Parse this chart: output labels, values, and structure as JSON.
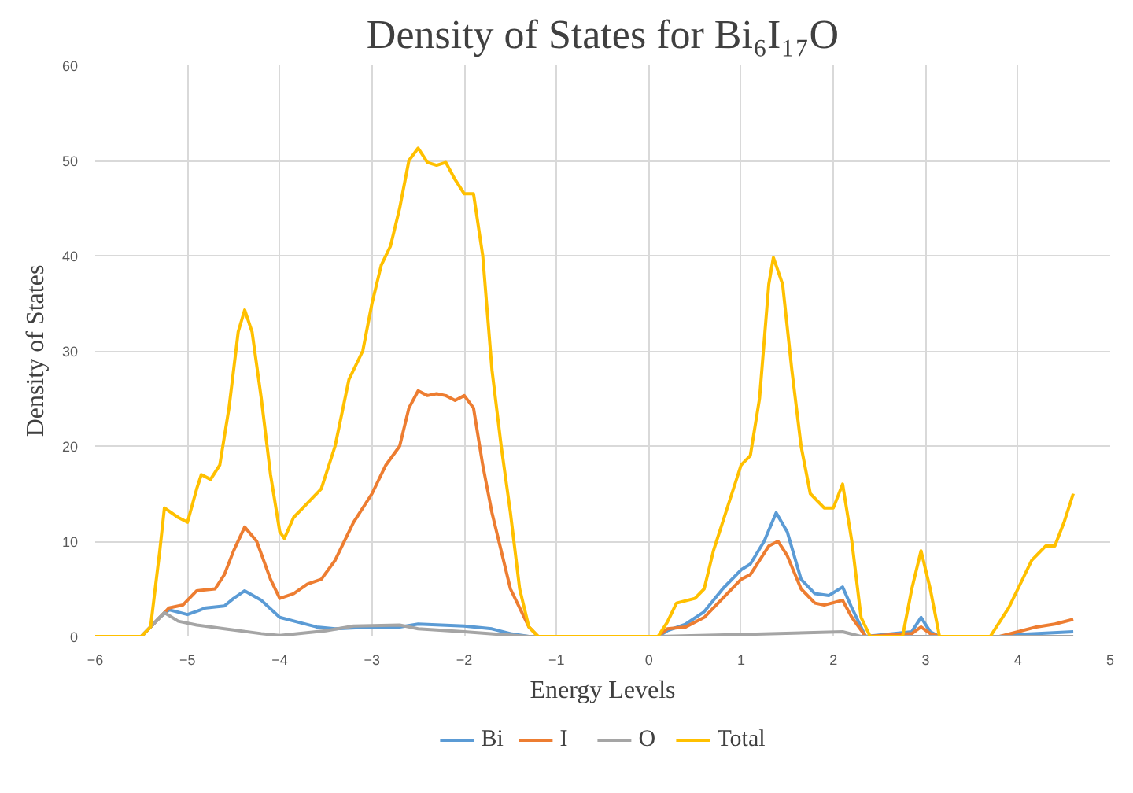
{
  "chart_data": {
    "type": "line",
    "title": "Density of States for Bi₆I₁₇O",
    "xlabel": "Energy Levels",
    "ylabel": "Density of States",
    "xlim": [
      -6,
      5
    ],
    "xticks": [
      -6,
      -5,
      -4,
      -3,
      -2,
      -1,
      0,
      1,
      2,
      3,
      4,
      5
    ],
    "ylim": [
      0,
      60
    ],
    "yticks": [
      0,
      10,
      20,
      30,
      40,
      50,
      60
    ],
    "grid": true,
    "legend": "bottom",
    "marker": "none",
    "line_style": "solid",
    "series": [
      {
        "name": "Bi",
        "color": "#5b9bd5",
        "x": [
          -6,
          -5.5,
          -5.3,
          -5.2,
          -5.0,
          -4.8,
          -4.6,
          -4.5,
          -4.38,
          -4.2,
          -4.0,
          -3.8,
          -3.6,
          -3.4,
          -3.0,
          -2.7,
          -2.5,
          -2.0,
          -1.7,
          -1.5,
          -1.3,
          0.1,
          0.2,
          0.4,
          0.6,
          0.8,
          1.0,
          1.1,
          1.25,
          1.38,
          1.5,
          1.65,
          1.8,
          1.95,
          2.1,
          2.2,
          2.35,
          2.85,
          2.95,
          3.05,
          3.15,
          3.8,
          4.0,
          4.6
        ],
        "values": [
          0,
          0,
          2,
          2.8,
          2.3,
          3,
          3.2,
          4,
          4.8,
          3.8,
          2,
          1.5,
          1,
          0.8,
          1,
          1,
          1.3,
          1.1,
          0.8,
          0.3,
          0,
          0,
          0.6,
          1.3,
          2.6,
          5,
          7,
          7.6,
          10,
          13,
          11,
          6,
          4.5,
          4.3,
          5.2,
          3,
          0,
          0.5,
          2,
          0.5,
          0,
          0,
          0.2,
          0.5
        ]
      },
      {
        "name": "I",
        "color": "#ed7d31",
        "x": [
          -6,
          -5.5,
          -5.3,
          -5.2,
          -5.05,
          -4.9,
          -4.7,
          -4.6,
          -4.5,
          -4.38,
          -4.25,
          -4.1,
          -4.0,
          -3.85,
          -3.7,
          -3.55,
          -3.4,
          -3.2,
          -3.0,
          -2.85,
          -2.7,
          -2.6,
          -2.5,
          -2.4,
          -2.3,
          -2.2,
          -2.1,
          -2.0,
          -1.9,
          -1.8,
          -1.7,
          -1.5,
          -1.3,
          -1.2,
          0.1,
          0.2,
          0.4,
          0.6,
          0.8,
          1.0,
          1.1,
          1.3,
          1.4,
          1.5,
          1.65,
          1.8,
          1.9,
          2.1,
          2.2,
          2.35,
          2.85,
          2.95,
          3.05,
          3.15,
          3.8,
          4.0,
          4.2,
          4.4,
          4.6
        ],
        "values": [
          0,
          0,
          2,
          3,
          3.3,
          4.8,
          5,
          6.5,
          9,
          11.5,
          10,
          6,
          4,
          4.5,
          5.5,
          6,
          8,
          12,
          15,
          18,
          20,
          24,
          25.8,
          25.3,
          25.5,
          25.3,
          24.8,
          25.3,
          24,
          18,
          13,
          5,
          1,
          0,
          0,
          0.8,
          1,
          2,
          4,
          6,
          6.5,
          9.5,
          10,
          8.5,
          5,
          3.5,
          3.3,
          3.8,
          2,
          0,
          0.3,
          1,
          0.3,
          0,
          0,
          0.5,
          1,
          1.3,
          1.8
        ]
      },
      {
        "name": "O",
        "color": "#a5a5a5",
        "x": [
          -6,
          -5.5,
          -5.25,
          -5.1,
          -4.9,
          -4.6,
          -4.2,
          -4.0,
          -3.5,
          -3.2,
          -2.7,
          -2.5,
          -2.0,
          -1.6,
          -1.3,
          0.1,
          1.0,
          2.1,
          2.3,
          4.6
        ],
        "values": [
          0,
          0,
          2.5,
          1.6,
          1.2,
          0.8,
          0.3,
          0.1,
          0.6,
          1.1,
          1.2,
          0.8,
          0.5,
          0.2,
          0,
          0,
          0.2,
          0.5,
          0,
          0
        ]
      },
      {
        "name": "Total",
        "color": "#ffc000",
        "x": [
          -6,
          -5.5,
          -5.4,
          -5.3,
          -5.25,
          -5.1,
          -5.0,
          -4.9,
          -4.85,
          -4.75,
          -4.65,
          -4.55,
          -4.45,
          -4.38,
          -4.3,
          -4.2,
          -4.1,
          -4.0,
          -3.95,
          -3.85,
          -3.7,
          -3.55,
          -3.4,
          -3.25,
          -3.1,
          -3.0,
          -2.9,
          -2.8,
          -2.7,
          -2.6,
          -2.5,
          -2.4,
          -2.3,
          -2.2,
          -2.1,
          -2.0,
          -1.9,
          -1.8,
          -1.7,
          -1.6,
          -1.5,
          -1.4,
          -1.3,
          -1.2,
          0.1,
          0.2,
          0.3,
          0.5,
          0.6,
          0.7,
          0.9,
          1.0,
          1.1,
          1.2,
          1.3,
          1.35,
          1.45,
          1.55,
          1.65,
          1.75,
          1.9,
          2.0,
          2.1,
          2.2,
          2.3,
          2.4,
          2.75,
          2.85,
          2.95,
          3.05,
          3.15,
          3.7,
          3.9,
          4.0,
          4.15,
          4.3,
          4.4,
          4.5,
          4.6
        ],
        "values": [
          0,
          0,
          1,
          9,
          13.5,
          12.5,
          12,
          15.5,
          17,
          16.5,
          18,
          24,
          32,
          34.3,
          32,
          25,
          17,
          11,
          10.3,
          12.5,
          14,
          15.5,
          20,
          27,
          30,
          35,
          39,
          41,
          45,
          50,
          51.3,
          49.8,
          49.5,
          49.8,
          48,
          46.5,
          46.5,
          40,
          28,
          20,
          13,
          5,
          1,
          0,
          0,
          1.5,
          3.5,
          4,
          5,
          9,
          15,
          18,
          19,
          25,
          37,
          39.8,
          37,
          28,
          20,
          15,
          13.5,
          13.5,
          16,
          10,
          2,
          0,
          0,
          5,
          9,
          5,
          0,
          0,
          3,
          5,
          8,
          9.5,
          9.5,
          12,
          15
        ]
      }
    ]
  }
}
